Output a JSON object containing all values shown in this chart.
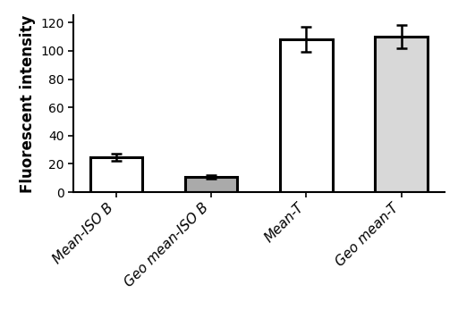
{
  "categories": [
    "Mean-ISO B",
    "Geo mean-ISO B",
    "Mean-T",
    "Geo mean-T"
  ],
  "values": [
    25,
    11,
    108,
    110
  ],
  "errors": [
    2.5,
    1.2,
    9,
    8
  ],
  "bar_colors": [
    "white",
    "#aaaaaa",
    "white",
    "#d8d8d8"
  ],
  "bar_edgecolors": [
    "black",
    "black",
    "black",
    "black"
  ],
  "bar_linewidth": 2.2,
  "ylabel": "Fluorescent intensity",
  "ylim": [
    0,
    125
  ],
  "yticks": [
    0,
    20,
    40,
    60,
    80,
    100,
    120
  ],
  "capsize": 4,
  "error_linewidth": 1.8,
  "bar_width": 0.55,
  "ylabel_fontsize": 12,
  "ylabel_fontweight": "bold",
  "tick_fontsize": 10,
  "xtick_fontsize": 11,
  "background_color": "white"
}
